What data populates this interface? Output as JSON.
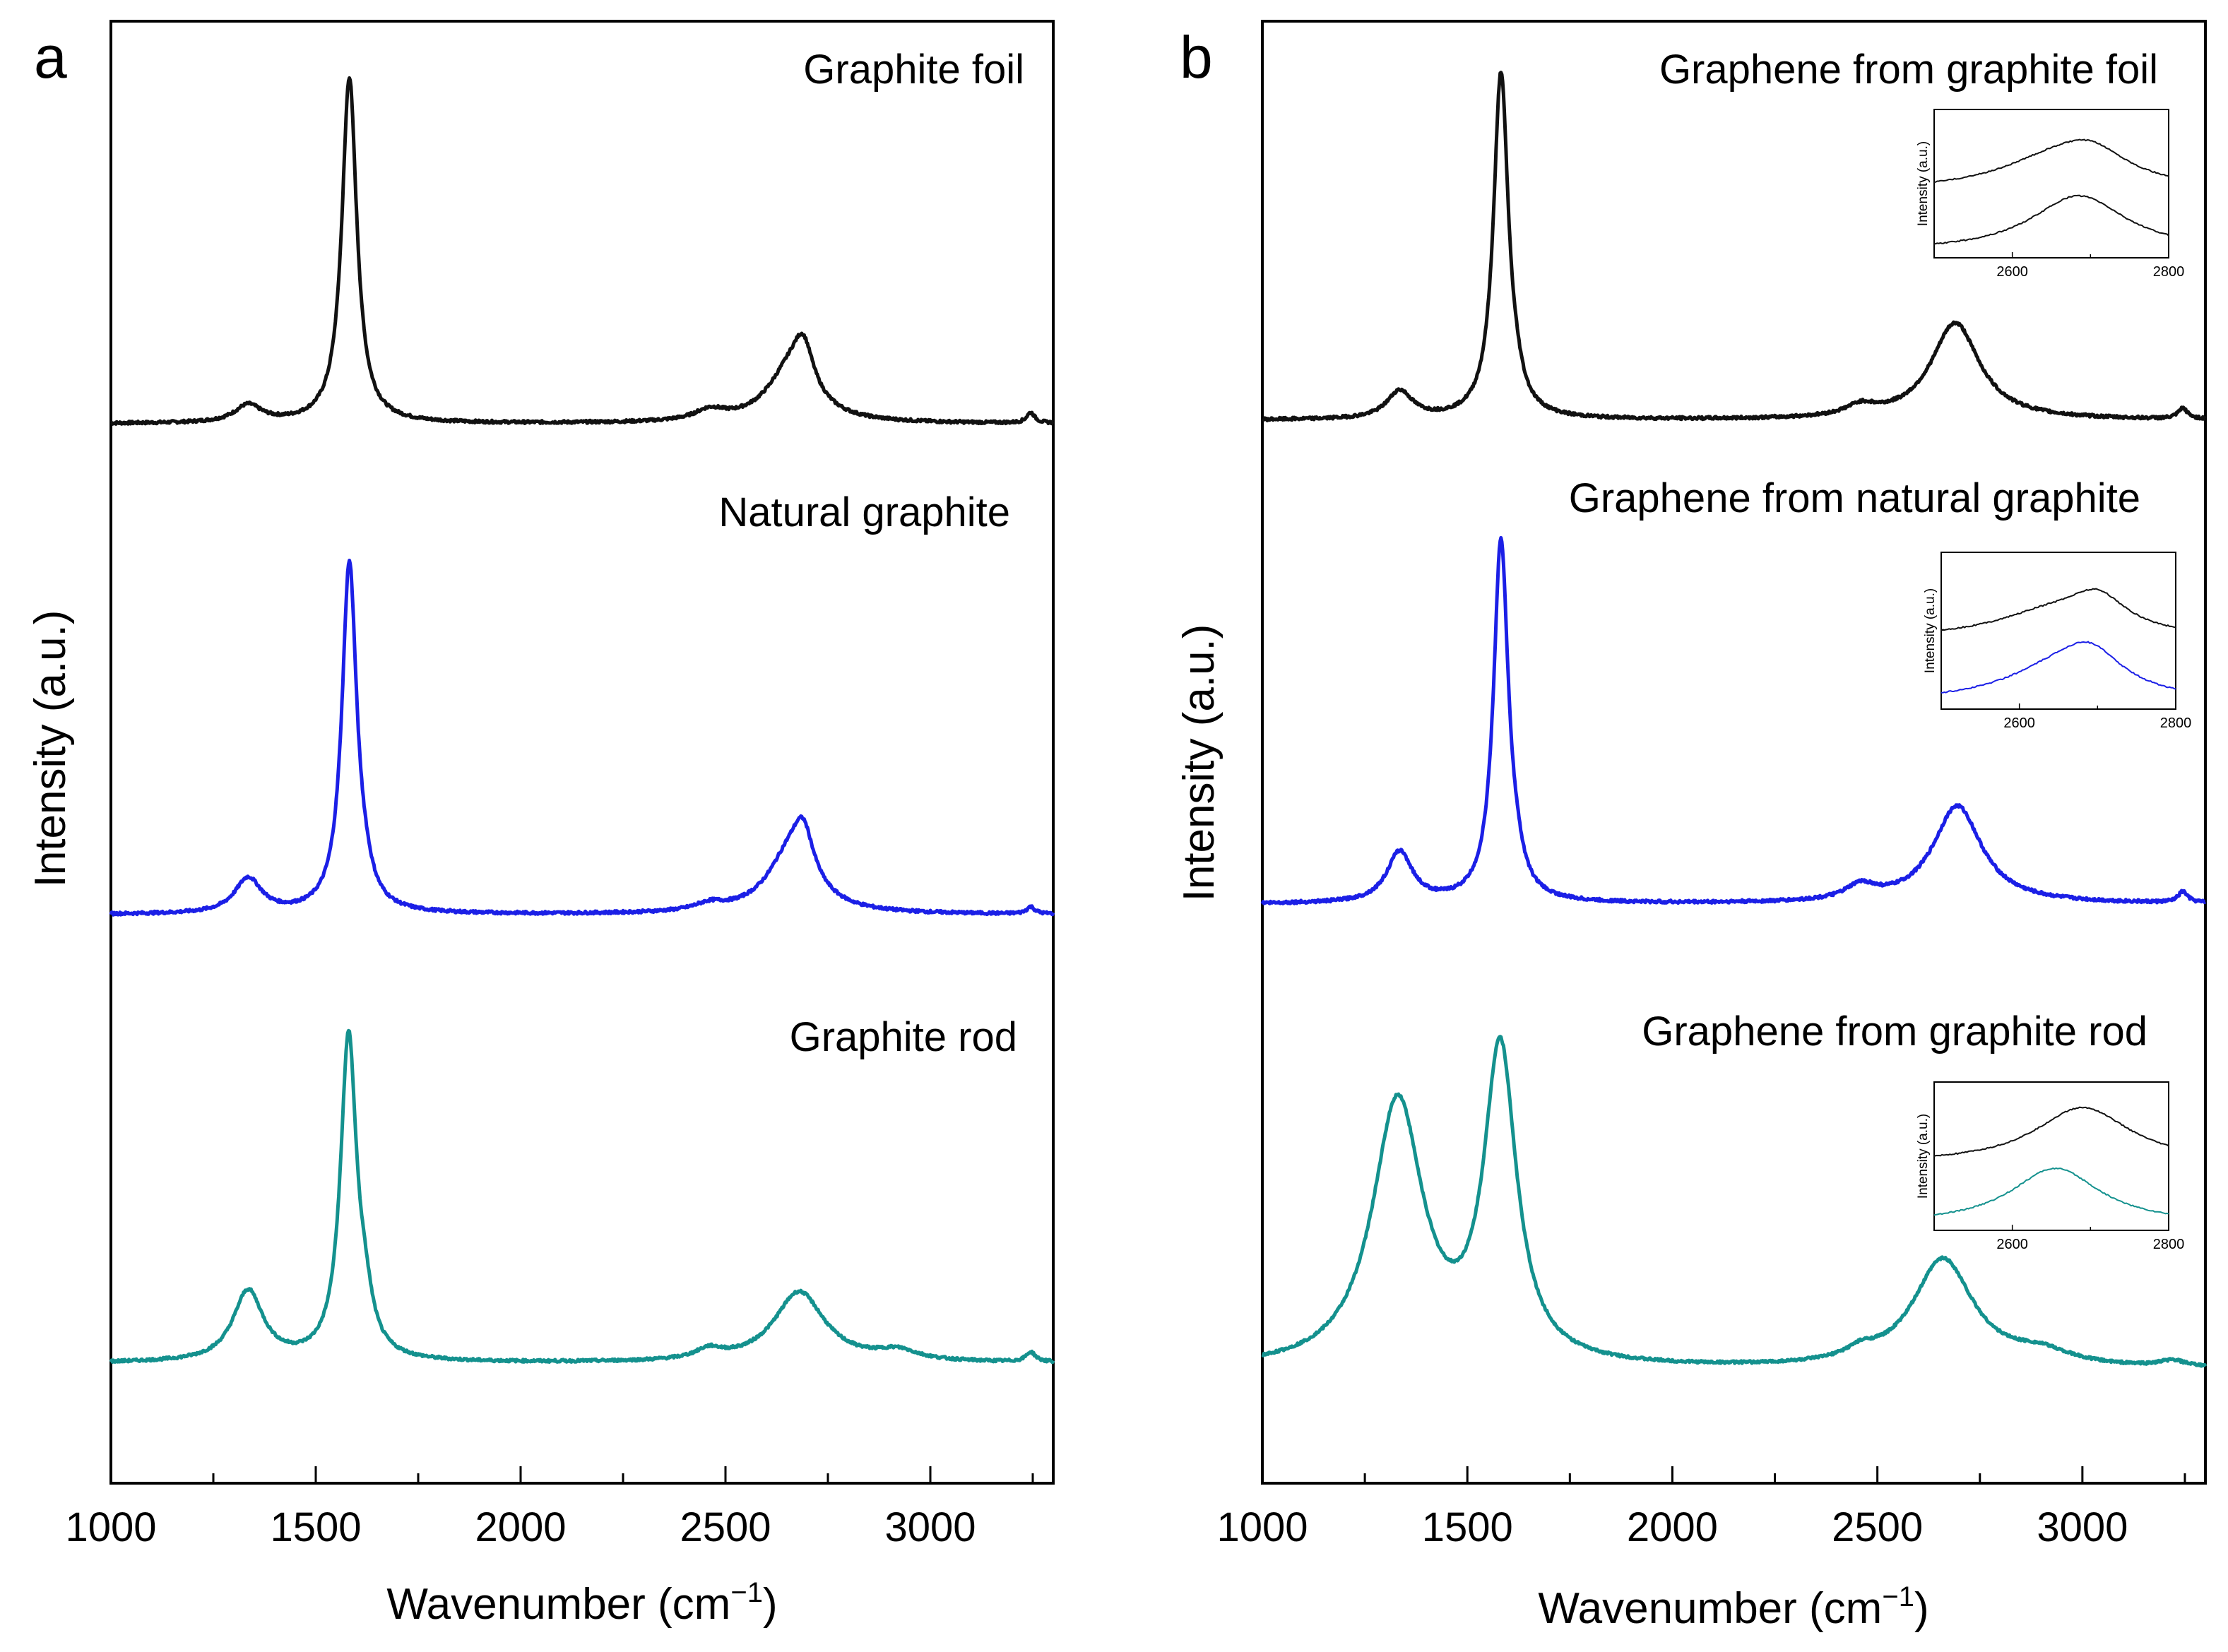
{
  "figure": {
    "panels": [
      "a",
      "b"
    ],
    "x_axis_title": "Wavenumber (cm",
    "x_axis_superscript": "−1",
    "x_axis_close": ")",
    "y_axis_title": "Intensity (a.u.)",
    "inset_axis_title": "Intensity (a.u.)"
  },
  "colors": {
    "black": "#111111",
    "blue": "#1b1fe6",
    "teal": "#14918e"
  },
  "chart_data": [
    {
      "type": "line",
      "panel": "a",
      "xlabel": "Wavenumber (cm−1)",
      "ylabel": "Intensity (a.u.)",
      "xlim": [
        1000,
        3300
      ],
      "xticks": [
        1000,
        1500,
        2000,
        2500,
        3000
      ],
      "yticks_shown": false,
      "series": [
        {
          "name": "Graphite foil",
          "label": "Graphite foil",
          "color": "black",
          "offset": 2.0,
          "peaks": [
            [
              1335,
              0.05,
              40
            ],
            [
              1582,
              1.0,
              22
            ],
            [
              2462,
              0.03,
              45
            ],
            [
              2660,
              0.15,
              70
            ],
            [
              2690,
              0.13,
              30
            ],
            [
              3245,
              0.03,
              12
            ]
          ]
        },
        {
          "name": "Natural graphite",
          "label": "Natural graphite",
          "color": "blue",
          "offset": 1.0,
          "peaks": [
            [
              1335,
              0.1,
              40
            ],
            [
              1582,
              1.0,
              22
            ],
            [
              1620,
              0.04,
              20
            ],
            [
              2462,
              0.02,
              45
            ],
            [
              2660,
              0.17,
              70
            ],
            [
              2690,
              0.13,
              30
            ],
            [
              3245,
              0.02,
              12
            ]
          ]
        },
        {
          "name": "Graphite rod",
          "label": "Graphite rod",
          "color": "teal",
          "offset": 0.0,
          "peaks": [
            [
              1335,
              0.22,
              45
            ],
            [
              1580,
              1.0,
              24
            ],
            [
              1620,
              0.11,
              22
            ],
            [
              2460,
              0.03,
              40
            ],
            [
              2680,
              0.22,
              75
            ],
            [
              2920,
              0.03,
              60
            ],
            [
              3245,
              0.03,
              14
            ]
          ]
        }
      ]
    },
    {
      "type": "line",
      "panel": "b",
      "xlabel": "Wavenumber (cm−1)",
      "ylabel": "Intensity (a.u.)",
      "xlim": [
        1000,
        3300
      ],
      "xticks": [
        1000,
        1500,
        2000,
        2500,
        3000
      ],
      "yticks_shown": false,
      "series": [
        {
          "name": "Graphene from graphite foil",
          "label": "Graphene from graphite foil",
          "color": "black",
          "offset": 2.0,
          "peaks": [
            [
              1335,
              0.08,
              38
            ],
            [
              1582,
              1.0,
              22
            ],
            [
              1620,
              0.03,
              18
            ],
            [
              2460,
              0.03,
              45
            ],
            [
              2690,
              0.28,
              72
            ],
            [
              3245,
              0.03,
              14
            ]
          ]
        },
        {
          "name": "Graphene from natural graphite",
          "label": "Graphene from natural graphite",
          "color": "blue",
          "offset": 1.0,
          "peaks": [
            [
              1335,
              0.14,
              38
            ],
            [
              1582,
              1.0,
              22
            ],
            [
              1620,
              0.04,
              18
            ],
            [
              2460,
              0.04,
              45
            ],
            [
              2695,
              0.27,
              72
            ],
            [
              3245,
              0.03,
              14
            ]
          ]
        },
        {
          "name": "Graphene from graphite rod",
          "label": "Graphene from graphite rod",
          "color": "teal",
          "offset": 0.0,
          "peaks": [
            [
              1330,
              0.85,
              75
            ],
            [
              1580,
              1.0,
              48
            ],
            [
              2460,
              0.03,
              45
            ],
            [
              2660,
              0.35,
              90
            ],
            [
              2900,
              0.04,
              90
            ],
            [
              3220,
              0.02,
              40
            ]
          ]
        }
      ],
      "insets": [
        {
          "for_series": "Graphene from graphite foil",
          "xlim": [
            2500,
            2800
          ],
          "xticks": [
            2600,
            2800
          ],
          "ylabel": "Intensity (a.u.)",
          "traces": [
            {
              "color": "black",
              "position": "upper",
              "peaks": [
                [
                  2650,
                  0.45,
                  90
                ],
                [
                  2700,
                  0.55,
                  60
                ]
              ]
            },
            {
              "color": "black",
              "position": "lower",
              "peaks": [
                [
                  2685,
                  1.0,
                  75
                ]
              ]
            }
          ]
        },
        {
          "for_series": "Graphene from natural graphite",
          "xlim": [
            2500,
            2800
          ],
          "xticks": [
            2600,
            2800
          ],
          "ylabel": "Intensity (a.u.)",
          "traces": [
            {
              "color": "black",
              "position": "upper",
              "peaks": [
                [
                  2640,
                  0.4,
                  90
                ],
                [
                  2700,
                  0.55,
                  45
                ]
              ]
            },
            {
              "color": "blue",
              "position": "lower",
              "peaks": [
                [
                  2650,
                  0.5,
                  90
                ],
                [
                  2690,
                  0.6,
                  50
                ]
              ]
            }
          ]
        },
        {
          "for_series": "Graphene from graphite rod",
          "xlim": [
            2500,
            2800
          ],
          "xticks": [
            2600,
            2800
          ],
          "ylabel": "Intensity (a.u.)",
          "traces": [
            {
              "color": "black",
              "position": "upper",
              "peaks": [
                [
                  2690,
                  1.0,
                  75
                ]
              ]
            },
            {
              "color": "teal",
              "position": "lower",
              "peaks": [
                [
                  2655,
                  1.0,
                  70
                ]
              ]
            }
          ]
        }
      ]
    }
  ]
}
